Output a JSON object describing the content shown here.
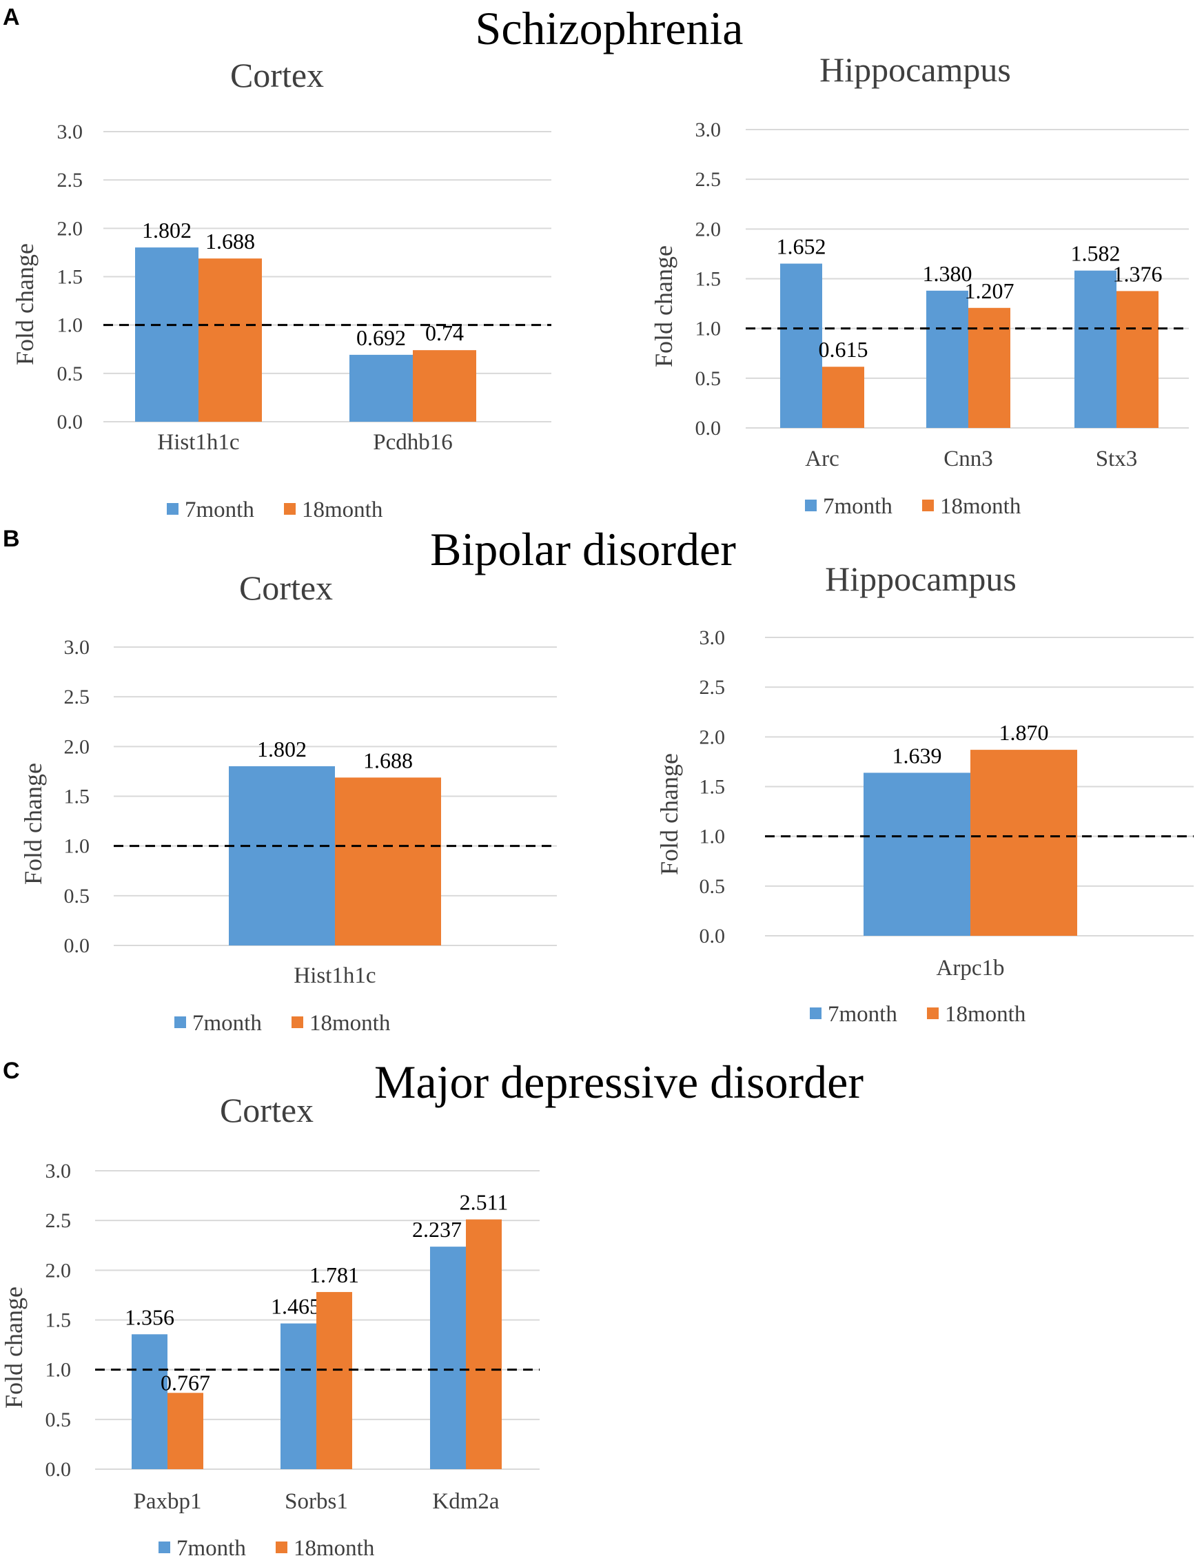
{
  "panels": [
    {
      "letter": "A",
      "title": "Schizophrenia"
    },
    {
      "letter": "B",
      "title": "Bipolar disorder"
    },
    {
      "letter": "C",
      "title": "Major depressive disorder"
    }
  ],
  "colors": {
    "series_7month": "#5b9bd5",
    "series_18month": "#ed7d31",
    "grid": "#d9d9d9",
    "text": "#3f3f3f",
    "reference": "#000000"
  },
  "chart_data": [
    {
      "type": "bar",
      "panel": "A",
      "title": "Cortex",
      "categories": [
        "Hist1h1c",
        "Pcdhb16"
      ],
      "series": [
        {
          "name": "7month",
          "values": [
            1.802,
            0.692
          ],
          "labels": [
            "1.802",
            "0.692"
          ]
        },
        {
          "name": "18month",
          "values": [
            1.688,
            0.74
          ],
          "labels": [
            "1.688",
            "0.74"
          ]
        }
      ],
      "ylabel": "Fold change",
      "ylim": [
        0,
        3
      ],
      "yticks": [
        "0.0",
        "0.5",
        "1.0",
        "1.5",
        "2.0",
        "2.5",
        "3.0"
      ],
      "reference_line": 1.0,
      "legend": [
        "7month",
        "18month"
      ],
      "legend_position": "bottom"
    },
    {
      "type": "bar",
      "panel": "A",
      "title": "Hippocampus",
      "categories": [
        "Arc",
        "Cnn3",
        "Stx3"
      ],
      "series": [
        {
          "name": "7month",
          "values": [
            1.652,
            1.38,
            1.582
          ],
          "labels": [
            "1.652",
            "1.380",
            "1.582"
          ]
        },
        {
          "name": "18month",
          "values": [
            0.615,
            1.207,
            1.376
          ],
          "labels": [
            "0.615",
            "1.207",
            "1.376"
          ]
        }
      ],
      "ylabel": "Fold change",
      "ylim": [
        0,
        3
      ],
      "yticks": [
        "0.0",
        "0.5",
        "1.0",
        "1.5",
        "2.0",
        "2.5",
        "3.0"
      ],
      "reference_line": 1.0,
      "legend": [
        "7month",
        "18month"
      ],
      "legend_position": "bottom"
    },
    {
      "type": "bar",
      "panel": "B",
      "title": "Cortex",
      "categories": [
        "Hist1h1c"
      ],
      "series": [
        {
          "name": "7month",
          "values": [
            1.802
          ],
          "labels": [
            "1.802"
          ]
        },
        {
          "name": "18month",
          "values": [
            1.688
          ],
          "labels": [
            "1.688"
          ]
        }
      ],
      "ylabel": "Fold change",
      "ylim": [
        0,
        3
      ],
      "yticks": [
        "0.0",
        "0.5",
        "1.0",
        "1.5",
        "2.0",
        "2.5",
        "3.0"
      ],
      "reference_line": 1.0,
      "legend": [
        "7month",
        "18month"
      ],
      "legend_position": "bottom"
    },
    {
      "type": "bar",
      "panel": "B",
      "title": "Hippocampus",
      "categories": [
        "Arpc1b"
      ],
      "series": [
        {
          "name": "7month",
          "values": [
            1.639
          ],
          "labels": [
            "1.639"
          ]
        },
        {
          "name": "18month",
          "values": [
            1.87
          ],
          "labels": [
            "1.870"
          ]
        }
      ],
      "ylabel": "Fold change",
      "ylim": [
        0,
        3
      ],
      "yticks": [
        "0.0",
        "0.5",
        "1.0",
        "1.5",
        "2.0",
        "2.5",
        "3.0"
      ],
      "reference_line": 1.0,
      "legend": [
        "7month",
        "18month"
      ],
      "legend_position": "bottom"
    },
    {
      "type": "bar",
      "panel": "C",
      "title": "Cortex",
      "categories": [
        "Paxbp1",
        "Sorbs1",
        "Kdm2a"
      ],
      "series": [
        {
          "name": "7month",
          "values": [
            1.356,
            1.465,
            2.237
          ],
          "labels": [
            "1.356",
            "1.465",
            "2.237"
          ]
        },
        {
          "name": "18month",
          "values": [
            0.767,
            1.781,
            2.511
          ],
          "labels": [
            "0.767",
            "1.781",
            "2.511"
          ]
        }
      ],
      "ylabel": "Fold change",
      "ylim": [
        0,
        3
      ],
      "yticks": [
        "0.0",
        "0.5",
        "1.0",
        "1.5",
        "2.0",
        "2.5",
        "3.0"
      ],
      "reference_line": 1.0,
      "legend": [
        "7month",
        "18month"
      ],
      "legend_position": "bottom"
    }
  ]
}
